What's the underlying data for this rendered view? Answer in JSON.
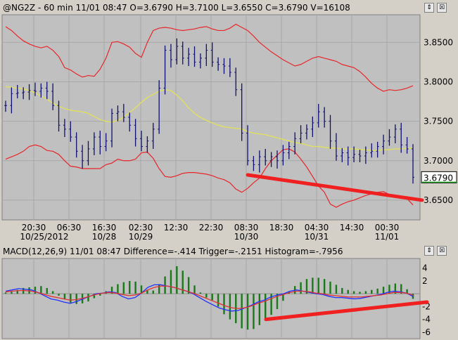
{
  "price_panel": {
    "title": "@NG2Z - 60 min 11/01 08:47 O=3.6790 H=3.7100 L=3.6550 C=3.6790 V=16108",
    "last_price_label": "3.6790",
    "buttons": {
      "restore": "⇕",
      "close": "☒"
    }
  },
  "macd_panel": {
    "title": "MACD(12,26,9) 11/01 08:47 Difference=-.414 Trigger=-.2151 Histogram=-.7956",
    "buttons": {
      "restore": "⇕",
      "close": "☒"
    }
  },
  "colors": {
    "background": "#c0c0c0",
    "bollinger": "#e8262b",
    "moving_average": "#e0e060",
    "price_bars": "#101070",
    "macd_line": "#2030ff",
    "trigger_line": "#e03030",
    "histogram": "#1a7a1a",
    "trendline": "#f02020"
  },
  "chart_data": [
    {
      "type": "line",
      "title": "@NG2Z - 60 min 11/01 08:47 O=3.6790 H=3.7100 L=3.6550 C=3.6790 V=16108",
      "x_tick_labels_top": [
        "20:30",
        "06:30",
        "16:30",
        "02:30",
        "12:30",
        "22:30",
        "08:30",
        "18:30",
        "04:30",
        "14:30",
        "00:30"
      ],
      "x_tick_labels_bottom": [
        "10/25/2012",
        "10/28",
        "10/29",
        "10/30",
        "10/31",
        "11/01"
      ],
      "y_tick_labels": [
        "3.8500",
        "3.8000",
        "3.7500",
        "3.7000",
        "3.6500"
      ],
      "ylim": [
        3.625,
        3.885
      ],
      "last_price": 3.679,
      "series": [
        {
          "name": "",
          "kind": "close",
          "values": [
            3.77,
            3.785,
            3.786,
            3.787,
            3.789,
            3.788,
            3.792,
            3.788,
            3.77,
            3.745,
            3.74,
            3.73,
            3.712,
            3.7,
            3.715,
            3.73,
            3.718,
            3.725,
            3.76,
            3.762,
            3.755,
            3.745,
            3.728,
            3.718,
            3.725,
            3.74,
            3.792,
            3.84,
            3.828,
            3.845,
            3.83,
            3.835,
            3.825,
            3.83,
            3.84,
            3.825,
            3.822,
            3.82,
            3.812,
            3.79,
            3.735,
            3.7,
            3.695,
            3.705,
            3.7,
            3.705,
            3.7,
            3.71,
            3.718,
            3.728,
            3.735,
            3.74,
            3.748,
            3.762,
            3.75,
            3.725,
            3.706,
            3.71,
            3.704,
            3.708,
            3.706,
            3.71,
            3.712,
            3.718,
            3.725,
            3.73,
            3.74,
            3.72,
            3.715,
            3.679
          ]
        },
        {
          "name": "",
          "kind": "upper_band",
          "values": [
            3.87,
            3.865,
            3.858,
            3.852,
            3.848,
            3.845,
            3.843,
            3.845,
            3.84,
            3.832,
            3.818,
            3.815,
            3.81,
            3.806,
            3.808,
            3.807,
            3.816,
            3.83,
            3.85,
            3.851,
            3.848,
            3.844,
            3.836,
            3.831,
            3.85,
            3.865,
            3.868,
            3.869,
            3.868,
            3.866,
            3.865,
            3.866,
            3.867,
            3.869,
            3.87,
            3.867,
            3.865,
            3.865,
            3.868,
            3.873,
            3.869,
            3.865,
            3.858,
            3.85,
            3.844,
            3.838,
            3.833,
            3.828,
            3.824,
            3.82,
            3.822,
            3.826,
            3.83,
            3.832,
            3.83,
            3.828,
            3.826,
            3.822,
            3.82,
            3.818,
            3.813,
            3.806,
            3.798,
            3.792,
            3.788,
            3.79,
            3.789,
            3.79,
            3.792,
            3.795
          ]
        },
        {
          "name": "",
          "kind": "moving_average",
          "values": [
            3.794,
            3.793,
            3.792,
            3.791,
            3.789,
            3.786,
            3.782,
            3.778,
            3.773,
            3.769,
            3.766,
            3.764,
            3.763,
            3.762,
            3.76,
            3.756,
            3.752,
            3.75,
            3.749,
            3.751,
            3.755,
            3.761,
            3.767,
            3.774,
            3.78,
            3.784,
            3.788,
            3.79,
            3.789,
            3.783,
            3.776,
            3.767,
            3.76,
            3.755,
            3.751,
            3.748,
            3.745,
            3.743,
            3.742,
            3.741,
            3.74,
            3.737,
            3.735,
            3.734,
            3.733,
            3.731,
            3.729,
            3.727,
            3.725,
            3.723,
            3.722,
            3.72,
            3.718,
            3.718,
            3.717,
            3.716,
            3.716,
            3.715,
            3.715,
            3.715,
            3.714,
            3.714,
            3.713,
            3.713,
            3.714,
            3.714,
            3.715,
            3.715,
            3.716,
            3.716
          ]
        },
        {
          "name": "",
          "kind": "lower_band",
          "values": [
            3.702,
            3.705,
            3.708,
            3.712,
            3.718,
            3.72,
            3.718,
            3.713,
            3.712,
            3.708,
            3.7,
            3.693,
            3.692,
            3.69,
            3.69,
            3.69,
            3.69,
            3.695,
            3.697,
            3.702,
            3.7,
            3.7,
            3.702,
            3.71,
            3.711,
            3.703,
            3.69,
            3.68,
            3.679,
            3.681,
            3.684,
            3.685,
            3.685,
            3.684,
            3.683,
            3.681,
            3.678,
            3.676,
            3.672,
            3.664,
            3.66,
            3.665,
            3.672,
            3.678,
            3.69,
            3.7,
            3.707,
            3.714,
            3.715,
            3.711,
            3.702,
            3.692,
            3.68,
            3.668,
            3.66,
            3.645,
            3.641,
            3.645,
            3.648,
            3.65,
            3.653,
            3.656,
            3.658,
            3.66,
            3.661,
            3.657,
            3.656,
            3.655,
            3.652,
            3.644
          ]
        }
      ]
    },
    {
      "type": "bar",
      "title": "MACD(12,26,9) 11/01 08:47 Difference=-.414 Trigger=-.2151 Histogram=-.7956",
      "y_tick_labels": [
        "4",
        "2",
        "-2",
        "-4",
        "-6"
      ],
      "ylim": [
        -7,
        5.5
      ],
      "histogram": [
        0.2,
        0.3,
        0.6,
        0.9,
        1.0,
        1.1,
        1.2,
        0.9,
        0.4,
        -0.3,
        -0.9,
        -1.4,
        -1.6,
        -1.5,
        -1.2,
        -0.7,
        -0.3,
        0.4,
        1.1,
        1.5,
        1.8,
        2.0,
        1.9,
        1.3,
        0.6,
        0.5,
        1.5,
        2.7,
        3.7,
        4.3,
        3.6,
        2.6,
        1.3,
        0.2,
        -0.6,
        -1.0,
        -2.0,
        -3.2,
        -4.0,
        -4.6,
        -5.4,
        -5.6,
        -5.5,
        -4.9,
        -4.2,
        -3.3,
        -2.4,
        -1.1,
        0.3,
        1.2,
        1.8,
        2.3,
        2.5,
        2.5,
        2.3,
        1.9,
        1.4,
        0.9,
        0.6,
        0.4,
        0.3,
        0.4,
        0.6,
        0.8,
        1.1,
        1.4,
        1.6,
        1.5,
        0.7,
        -0.8
      ],
      "series": [
        {
          "name": "Difference",
          "values": [
            0.4,
            0.6,
            0.8,
            0.7,
            0.6,
            0.2,
            -0.3,
            -0.8,
            -1.0,
            -1.3,
            -1.5,
            -1.2,
            -0.8,
            -0.4,
            0.0,
            0.1,
            0.3,
            0.2,
            -0.4,
            -0.8,
            -0.6,
            0.1,
            1.0,
            1.4,
            1.4,
            1.2,
            1.0,
            0.7,
            0.4,
            0.0,
            -0.6,
            -1.2,
            -1.7,
            -2.2,
            -2.5,
            -2.7,
            -2.6,
            -2.2,
            -1.8,
            -1.3,
            -1.0,
            -0.5,
            -0.2,
            0.0,
            0.4,
            0.6,
            0.4,
            0.2,
            0.0,
            -0.1,
            -0.4,
            -0.6,
            -0.6,
            -0.7,
            -0.8,
            -0.7,
            -0.5,
            -0.3,
            -0.1,
            0.2,
            0.4,
            0.3,
            0.1,
            -0.414
          ]
        },
        {
          "name": "Trigger",
          "values": [
            0.3,
            0.4,
            0.5,
            0.5,
            0.4,
            0.2,
            -0.1,
            -0.4,
            -0.6,
            -0.8,
            -1.0,
            -0.9,
            -0.7,
            -0.4,
            -0.1,
            0.1,
            0.2,
            0.1,
            -0.1,
            -0.3,
            -0.2,
            0.1,
            0.6,
            1.0,
            1.2,
            1.2,
            1.0,
            0.7,
            0.4,
            0.1,
            -0.3,
            -0.7,
            -1.1,
            -1.5,
            -1.9,
            -2.2,
            -2.3,
            -2.2,
            -1.9,
            -1.5,
            -1.2,
            -0.8,
            -0.4,
            -0.1,
            0.2,
            0.4,
            0.4,
            0.3,
            0.1,
            0.0,
            -0.2,
            -0.3,
            -0.4,
            -0.5,
            -0.5,
            -0.5,
            -0.4,
            -0.3,
            -0.2,
            0.0,
            0.2,
            0.2,
            0.1,
            -0.2151
          ]
        }
      ]
    }
  ]
}
